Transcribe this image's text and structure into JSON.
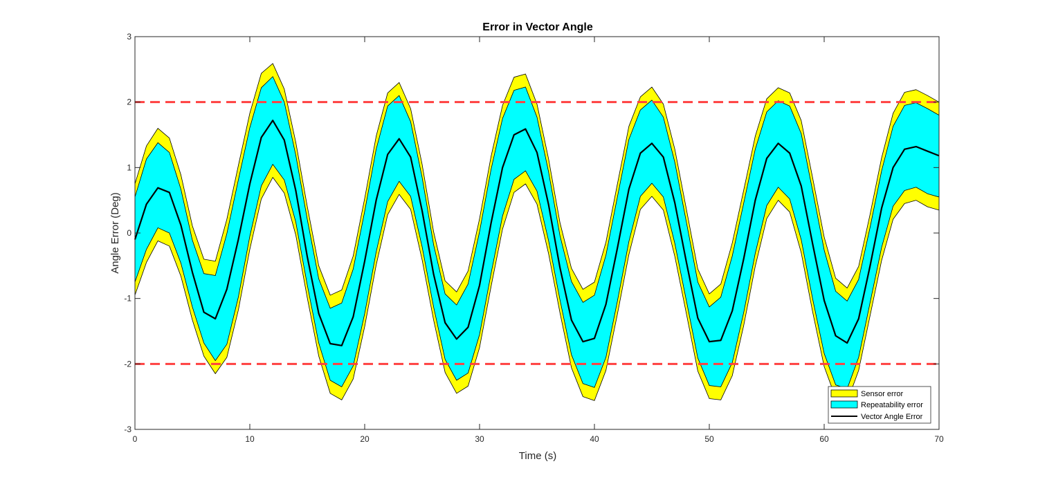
{
  "chart_data": {
    "type": "area",
    "title": "Error in Vector Angle",
    "xlabel": "Time (s)",
    "ylabel": "Angle Error (Deg)",
    "xlim": [
      0,
      70
    ],
    "ylim": [
      -3,
      3
    ],
    "xticks": [
      0,
      10,
      20,
      30,
      40,
      50,
      60,
      70
    ],
    "yticks": [
      -3,
      -2,
      -1,
      0,
      1,
      2,
      3
    ],
    "grid": false,
    "legend_position": "bottom-right",
    "x": [
      0,
      1,
      2,
      3,
      4,
      5,
      6,
      7,
      8,
      9,
      10,
      11,
      12,
      13,
      14,
      15,
      16,
      17,
      18,
      19,
      20,
      21,
      22,
      23,
      24,
      25,
      26,
      27,
      28,
      29,
      30,
      31,
      32,
      33,
      34,
      35,
      36,
      37,
      38,
      39,
      40,
      41,
      42,
      43,
      44,
      45,
      46,
      47,
      48,
      49,
      50,
      51,
      52,
      53,
      54,
      55,
      56,
      57,
      58,
      59,
      60,
      61,
      62,
      63,
      64,
      65,
      66,
      67,
      68,
      69,
      70
    ],
    "series": [
      {
        "name": "Sensor error",
        "color": "#ffff00",
        "upper": [
          0.75,
          1.33,
          1.6,
          1.45,
          0.89,
          0.11,
          -0.4,
          -0.43,
          0.21,
          1.03,
          1.83,
          2.44,
          2.59,
          2.2,
          1.39,
          0.41,
          -0.5,
          -0.95,
          -0.87,
          -0.35,
          0.53,
          1.48,
          2.14,
          2.3,
          1.9,
          1.05,
          0.02,
          -0.73,
          -0.9,
          -0.58,
          0.22,
          1.17,
          1.95,
          2.38,
          2.43,
          1.97,
          1.14,
          0.16,
          -0.54,
          -0.86,
          -0.75,
          -0.14,
          0.75,
          1.63,
          2.08,
          2.23,
          1.97,
          1.28,
          0.37,
          -0.55,
          -0.93,
          -0.78,
          -0.15,
          0.66,
          1.48,
          2.05,
          2.22,
          2.14,
          1.72,
          0.84,
          -0.06,
          -0.69,
          -0.84,
          -0.51,
          0.29,
          1.15,
          1.83,
          2.15,
          2.19,
          2.1,
          2.0
        ],
        "lower": [
          -0.95,
          -0.45,
          -0.12,
          -0.2,
          -0.66,
          -1.33,
          -1.88,
          -2.15,
          -1.9,
          -1.18,
          -0.25,
          0.52,
          0.85,
          0.61,
          -0.03,
          -0.99,
          -1.88,
          -2.45,
          -2.55,
          -2.23,
          -1.43,
          -0.49,
          0.28,
          0.59,
          0.36,
          -0.41,
          -1.33,
          -2.13,
          -2.45,
          -2.34,
          -1.75,
          -0.82,
          0.06,
          0.62,
          0.75,
          0.44,
          -0.31,
          -1.22,
          -2.06,
          -2.5,
          -2.56,
          -2.1,
          -1.24,
          -0.33,
          0.36,
          0.56,
          0.35,
          -0.36,
          -1.23,
          -2.11,
          -2.53,
          -2.55,
          -2.18,
          -1.41,
          -0.51,
          0.22,
          0.5,
          0.32,
          -0.3,
          -1.21,
          -2.04,
          -2.52,
          -2.58,
          -2.1,
          -1.26,
          -0.42,
          0.21,
          0.45,
          0.5,
          0.4,
          0.35
        ]
      },
      {
        "name": "Repeatability error",
        "color": "#00ffff",
        "upper": [
          0.55,
          1.13,
          1.38,
          1.23,
          0.67,
          -0.11,
          -0.62,
          -0.65,
          -0.01,
          0.81,
          1.61,
          2.22,
          2.39,
          2.0,
          1.19,
          0.21,
          -0.7,
          -1.15,
          -1.07,
          -0.55,
          0.33,
          1.28,
          1.94,
          2.1,
          1.7,
          0.85,
          -0.18,
          -0.93,
          -1.1,
          -0.78,
          0.02,
          0.97,
          1.75,
          2.18,
          2.23,
          1.77,
          0.94,
          -0.04,
          -0.74,
          -1.06,
          -0.95,
          -0.34,
          0.55,
          1.43,
          1.88,
          2.03,
          1.77,
          1.08,
          0.17,
          -0.75,
          -1.13,
          -0.98,
          -0.35,
          0.46,
          1.28,
          1.85,
          2.02,
          1.94,
          1.52,
          0.64,
          -0.26,
          -0.89,
          -1.04,
          -0.71,
          0.09,
          0.95,
          1.63,
          1.95,
          1.99,
          1.9,
          1.8
        ],
        "lower": [
          -0.75,
          -0.25,
          0.08,
          0.0,
          -0.46,
          -1.13,
          -1.68,
          -1.95,
          -1.7,
          -0.98,
          -0.05,
          0.72,
          1.05,
          0.81,
          0.17,
          -0.79,
          -1.68,
          -2.25,
          -2.35,
          -2.03,
          -1.23,
          -0.29,
          0.48,
          0.79,
          0.56,
          -0.21,
          -1.13,
          -1.93,
          -2.25,
          -2.14,
          -1.55,
          -0.62,
          0.26,
          0.82,
          0.95,
          0.64,
          -0.11,
          -1.02,
          -1.86,
          -2.3,
          -2.36,
          -1.9,
          -1.04,
          -0.13,
          0.56,
          0.76,
          0.55,
          -0.16,
          -1.03,
          -1.91,
          -2.33,
          -2.35,
          -1.98,
          -1.21,
          -0.31,
          0.42,
          0.7,
          0.52,
          -0.1,
          -1.01,
          -1.84,
          -2.32,
          -2.38,
          -1.9,
          -1.06,
          -0.22,
          0.41,
          0.65,
          0.7,
          0.6,
          0.55
        ]
      },
      {
        "name": "Vector Angle Error",
        "color": "#000000",
        "values": [
          -0.1,
          0.44,
          0.69,
          0.62,
          0.12,
          -0.6,
          -1.21,
          -1.31,
          -0.86,
          -0.1,
          0.75,
          1.46,
          1.72,
          1.42,
          0.65,
          -0.36,
          -1.23,
          -1.69,
          -1.72,
          -1.28,
          -0.43,
          0.5,
          1.2,
          1.44,
          1.16,
          0.34,
          -0.63,
          -1.37,
          -1.62,
          -1.44,
          -0.8,
          0.15,
          1.0,
          1.5,
          1.59,
          1.23,
          0.44,
          -0.53,
          -1.33,
          -1.66,
          -1.61,
          -1.09,
          -0.23,
          0.67,
          1.22,
          1.37,
          1.16,
          0.46,
          -0.44,
          -1.3,
          -1.66,
          -1.64,
          -1.19,
          -0.39,
          0.5,
          1.14,
          1.37,
          1.22,
          0.72,
          -0.17,
          -1.03,
          -1.57,
          -1.68,
          -1.31,
          -0.5,
          0.38,
          1.0,
          1.28,
          1.32,
          1.25,
          1.18
        ]
      }
    ],
    "reference_lines": [
      {
        "y": 2,
        "color": "#ff4040",
        "style": "dashed"
      },
      {
        "y": -2,
        "color": "#ff4040",
        "style": "dashed"
      }
    ]
  }
}
